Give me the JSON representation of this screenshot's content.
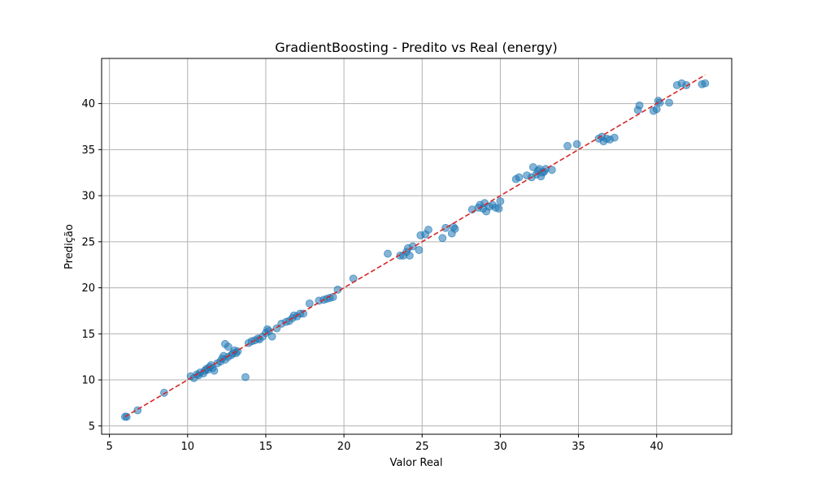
{
  "chart_data": {
    "type": "scatter",
    "title": "GradientBoosting - Predito vs Real (energy)",
    "xlabel": "Valor Real",
    "ylabel": "Predição",
    "xlim": [
      4.5,
      44.8
    ],
    "ylim": [
      4.1,
      44.9
    ],
    "xticks": [
      5,
      10,
      15,
      20,
      25,
      30,
      35,
      40
    ],
    "yticks": [
      5,
      10,
      15,
      20,
      25,
      30,
      35,
      40
    ],
    "grid": true,
    "colors": {
      "points": "#1f77b4",
      "reference": "#d62728"
    },
    "reference_line": {
      "from": [
        6.0,
        6.0
      ],
      "to": [
        43.1,
        43.1
      ],
      "style": "dashed"
    },
    "points": [
      [
        6.0,
        6.0
      ],
      [
        6.1,
        6.0
      ],
      [
        6.8,
        6.7
      ],
      [
        8.5,
        8.6
      ],
      [
        10.2,
        10.4
      ],
      [
        10.4,
        10.2
      ],
      [
        10.6,
        10.6
      ],
      [
        10.7,
        10.5
      ],
      [
        10.8,
        10.8
      ],
      [
        11.0,
        10.7
      ],
      [
        11.1,
        11.0
      ],
      [
        11.2,
        11.2
      ],
      [
        11.3,
        11.1
      ],
      [
        11.4,
        11.4
      ],
      [
        11.5,
        11.6
      ],
      [
        11.6,
        11.3
      ],
      [
        11.7,
        11.0
      ],
      [
        11.9,
        11.8
      ],
      [
        12.1,
        12.0
      ],
      [
        12.2,
        12.3
      ],
      [
        12.3,
        12.6
      ],
      [
        12.4,
        12.2
      ],
      [
        12.4,
        13.9
      ],
      [
        12.6,
        12.5
      ],
      [
        12.6,
        13.6
      ],
      [
        12.8,
        12.7
      ],
      [
        12.9,
        12.9
      ],
      [
        13.0,
        13.2
      ],
      [
        13.1,
        12.9
      ],
      [
        13.2,
        13.1
      ],
      [
        13.7,
        10.3
      ],
      [
        13.9,
        14.0
      ],
      [
        14.1,
        14.2
      ],
      [
        14.3,
        14.3
      ],
      [
        14.5,
        14.5
      ],
      [
        14.6,
        14.4
      ],
      [
        14.8,
        14.7
      ],
      [
        15.0,
        15.1
      ],
      [
        15.1,
        15.5
      ],
      [
        15.2,
        15.3
      ],
      [
        15.4,
        14.7
      ],
      [
        15.7,
        15.6
      ],
      [
        16.0,
        16.1
      ],
      [
        16.3,
        16.3
      ],
      [
        16.5,
        16.4
      ],
      [
        16.7,
        16.7
      ],
      [
        16.8,
        17.0
      ],
      [
        17.0,
        16.9
      ],
      [
        17.2,
        17.2
      ],
      [
        17.4,
        17.2
      ],
      [
        17.8,
        18.3
      ],
      [
        18.4,
        18.6
      ],
      [
        18.7,
        18.7
      ],
      [
        18.9,
        18.8
      ],
      [
        19.1,
        18.9
      ],
      [
        19.3,
        19.0
      ],
      [
        19.6,
        19.8
      ],
      [
        20.6,
        21.0
      ],
      [
        22.8,
        23.7
      ],
      [
        23.6,
        23.5
      ],
      [
        23.8,
        23.5
      ],
      [
        24.0,
        23.9
      ],
      [
        24.1,
        24.3
      ],
      [
        24.2,
        23.5
      ],
      [
        24.4,
        24.5
      ],
      [
        24.8,
        24.1
      ],
      [
        24.9,
        25.7
      ],
      [
        25.2,
        25.8
      ],
      [
        25.4,
        26.3
      ],
      [
        26.3,
        25.4
      ],
      [
        26.5,
        26.5
      ],
      [
        26.9,
        25.9
      ],
      [
        27.0,
        26.6
      ],
      [
        27.1,
        26.4
      ],
      [
        28.2,
        28.5
      ],
      [
        28.6,
        28.7
      ],
      [
        28.7,
        29.0
      ],
      [
        28.9,
        28.6
      ],
      [
        29.0,
        29.2
      ],
      [
        29.1,
        28.3
      ],
      [
        29.3,
        28.8
      ],
      [
        29.5,
        29.0
      ],
      [
        29.7,
        28.7
      ],
      [
        29.9,
        28.6
      ],
      [
        30.0,
        29.4
      ],
      [
        31.0,
        31.8
      ],
      [
        31.2,
        32.0
      ],
      [
        31.7,
        32.2
      ],
      [
        32.0,
        32.0
      ],
      [
        32.1,
        33.1
      ],
      [
        32.3,
        32.3
      ],
      [
        32.4,
        32.7
      ],
      [
        32.5,
        32.9
      ],
      [
        32.6,
        32.1
      ],
      [
        32.7,
        32.5
      ],
      [
        32.8,
        32.6
      ],
      [
        32.9,
        32.9
      ],
      [
        33.3,
        32.8
      ],
      [
        34.3,
        35.4
      ],
      [
        34.9,
        35.6
      ],
      [
        36.3,
        36.2
      ],
      [
        36.5,
        36.4
      ],
      [
        36.6,
        35.9
      ],
      [
        36.8,
        36.2
      ],
      [
        37.0,
        36.1
      ],
      [
        37.3,
        36.3
      ],
      [
        38.8,
        39.3
      ],
      [
        38.9,
        39.8
      ],
      [
        39.8,
        39.2
      ],
      [
        40.0,
        39.4
      ],
      [
        40.1,
        40.3
      ],
      [
        40.2,
        40.1
      ],
      [
        40.8,
        40.1
      ],
      [
        41.3,
        42.0
      ],
      [
        41.6,
        42.2
      ],
      [
        41.9,
        42.0
      ],
      [
        42.9,
        42.1
      ],
      [
        43.1,
        42.2
      ]
    ]
  }
}
